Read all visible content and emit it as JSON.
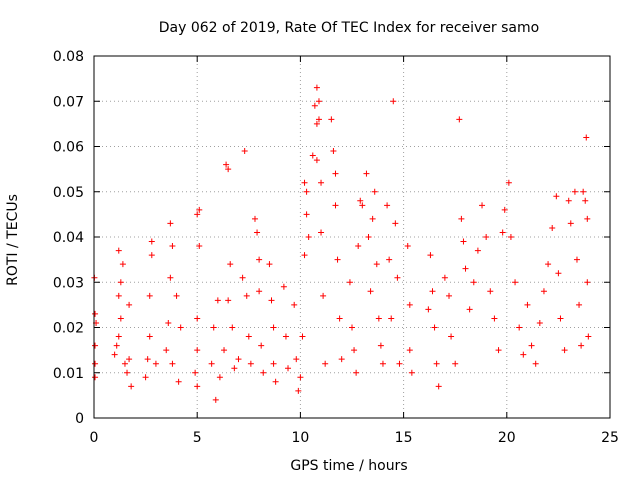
{
  "chart_data": {
    "type": "scatter",
    "title": "Day 062 of 2019, Rate Of TEC Index for receiver samo",
    "xlabel": "GPS time / hours",
    "ylabel": "ROTI / TECUs",
    "xlim": [
      0,
      25
    ],
    "ylim": [
      0,
      0.08
    ],
    "xticks": [
      0,
      5,
      10,
      15,
      20,
      25
    ],
    "xtick_labels": [
      "0",
      "5",
      "10",
      "15",
      "20",
      "25"
    ],
    "yticks": [
      0,
      0.01,
      0.02,
      0.03,
      0.04,
      0.05,
      0.06,
      0.07,
      0.08
    ],
    "ytick_labels": [
      "0",
      "0.01",
      "0.02",
      "0.03",
      "0.04",
      "0.05",
      "0.06",
      "0.07",
      "0.08"
    ],
    "grid": true,
    "marker": "+",
    "marker_color": "#ff0000",
    "series": [
      {
        "name": "ROTI",
        "points": [
          [
            0.02,
            0.031
          ],
          [
            0.05,
            0.023
          ],
          [
            0.1,
            0.021
          ],
          [
            0.05,
            0.016
          ],
          [
            0.05,
            0.012
          ],
          [
            0.05,
            0.009
          ],
          [
            1.0,
            0.014
          ],
          [
            1.1,
            0.016
          ],
          [
            1.2,
            0.018
          ],
          [
            1.3,
            0.022
          ],
          [
            1.2,
            0.027
          ],
          [
            1.3,
            0.03
          ],
          [
            1.4,
            0.034
          ],
          [
            1.2,
            0.037
          ],
          [
            1.5,
            0.012
          ],
          [
            1.6,
            0.01
          ],
          [
            1.7,
            0.025
          ],
          [
            1.7,
            0.013
          ],
          [
            1.8,
            0.007
          ],
          [
            2.5,
            0.009
          ],
          [
            2.6,
            0.013
          ],
          [
            2.7,
            0.018
          ],
          [
            2.7,
            0.027
          ],
          [
            2.8,
            0.036
          ],
          [
            2.8,
            0.039
          ],
          [
            3.0,
            0.012
          ],
          [
            3.5,
            0.015
          ],
          [
            3.6,
            0.021
          ],
          [
            3.7,
            0.031
          ],
          [
            3.7,
            0.043
          ],
          [
            3.8,
            0.038
          ],
          [
            4.0,
            0.027
          ],
          [
            3.8,
            0.012
          ],
          [
            4.1,
            0.008
          ],
          [
            4.2,
            0.02
          ],
          [
            4.9,
            0.01
          ],
          [
            5.0,
            0.015
          ],
          [
            5.0,
            0.022
          ],
          [
            5.1,
            0.038
          ],
          [
            5.0,
            0.045
          ],
          [
            5.1,
            0.046
          ],
          [
            5.0,
            0.007
          ],
          [
            5.7,
            0.012
          ],
          [
            5.8,
            0.02
          ],
          [
            5.9,
            0.004
          ],
          [
            6.0,
            0.026
          ],
          [
            6.1,
            0.009
          ],
          [
            6.3,
            0.015
          ],
          [
            6.4,
            0.056
          ],
          [
            6.5,
            0.055
          ],
          [
            6.6,
            0.034
          ],
          [
            6.5,
            0.026
          ],
          [
            6.7,
            0.02
          ],
          [
            6.8,
            0.011
          ],
          [
            7.0,
            0.013
          ],
          [
            7.2,
            0.031
          ],
          [
            7.3,
            0.059
          ],
          [
            7.4,
            0.027
          ],
          [
            7.5,
            0.018
          ],
          [
            7.6,
            0.012
          ],
          [
            7.8,
            0.044
          ],
          [
            7.9,
            0.041
          ],
          [
            8.0,
            0.035
          ],
          [
            8.0,
            0.028
          ],
          [
            8.1,
            0.016
          ],
          [
            8.2,
            0.01
          ],
          [
            8.5,
            0.034
          ],
          [
            8.6,
            0.026
          ],
          [
            8.7,
            0.02
          ],
          [
            8.7,
            0.012
          ],
          [
            8.8,
            0.008
          ],
          [
            9.2,
            0.029
          ],
          [
            9.3,
            0.018
          ],
          [
            9.4,
            0.011
          ],
          [
            9.7,
            0.025
          ],
          [
            9.8,
            0.013
          ],
          [
            9.9,
            0.006
          ],
          [
            10.0,
            0.009
          ],
          [
            10.1,
            0.018
          ],
          [
            10.2,
            0.036
          ],
          [
            10.2,
            0.052
          ],
          [
            10.3,
            0.05
          ],
          [
            10.3,
            0.045
          ],
          [
            10.4,
            0.04
          ],
          [
            10.6,
            0.058
          ],
          [
            10.7,
            0.069
          ],
          [
            10.8,
            0.073
          ],
          [
            10.8,
            0.065
          ],
          [
            10.9,
            0.066
          ],
          [
            10.9,
            0.07
          ],
          [
            10.8,
            0.057
          ],
          [
            11.0,
            0.052
          ],
          [
            11.0,
            0.041
          ],
          [
            11.1,
            0.027
          ],
          [
            11.2,
            0.012
          ],
          [
            11.5,
            0.066
          ],
          [
            11.6,
            0.059
          ],
          [
            11.7,
            0.054
          ],
          [
            11.7,
            0.047
          ],
          [
            11.8,
            0.035
          ],
          [
            11.9,
            0.022
          ],
          [
            12.0,
            0.013
          ],
          [
            12.4,
            0.03
          ],
          [
            12.5,
            0.02
          ],
          [
            12.6,
            0.015
          ],
          [
            12.7,
            0.01
          ],
          [
            12.8,
            0.038
          ],
          [
            12.9,
            0.048
          ],
          [
            13.0,
            0.047
          ],
          [
            13.2,
            0.054
          ],
          [
            13.3,
            0.04
          ],
          [
            13.4,
            0.028
          ],
          [
            13.5,
            0.044
          ],
          [
            13.6,
            0.05
          ],
          [
            13.7,
            0.034
          ],
          [
            13.8,
            0.022
          ],
          [
            13.9,
            0.016
          ],
          [
            14.0,
            0.012
          ],
          [
            14.2,
            0.047
          ],
          [
            14.3,
            0.035
          ],
          [
            14.4,
            0.022
          ],
          [
            14.5,
            0.07
          ],
          [
            14.6,
            0.043
          ],
          [
            14.7,
            0.031
          ],
          [
            14.8,
            0.012
          ],
          [
            15.2,
            0.038
          ],
          [
            15.3,
            0.025
          ],
          [
            15.3,
            0.015
          ],
          [
            15.4,
            0.01
          ],
          [
            16.2,
            0.024
          ],
          [
            16.3,
            0.036
          ],
          [
            16.4,
            0.028
          ],
          [
            16.5,
            0.02
          ],
          [
            16.6,
            0.012
          ],
          [
            16.7,
            0.007
          ],
          [
            17.0,
            0.031
          ],
          [
            17.2,
            0.027
          ],
          [
            17.3,
            0.018
          ],
          [
            17.5,
            0.012
          ],
          [
            17.7,
            0.066
          ],
          [
            17.8,
            0.044
          ],
          [
            17.9,
            0.039
          ],
          [
            18.0,
            0.033
          ],
          [
            18.2,
            0.024
          ],
          [
            18.4,
            0.03
          ],
          [
            18.6,
            0.037
          ],
          [
            18.8,
            0.047
          ],
          [
            19.0,
            0.04
          ],
          [
            19.2,
            0.028
          ],
          [
            19.4,
            0.022
          ],
          [
            19.6,
            0.015
          ],
          [
            19.8,
            0.041
          ],
          [
            19.9,
            0.046
          ],
          [
            20.1,
            0.052
          ],
          [
            20.2,
            0.04
          ],
          [
            20.4,
            0.03
          ],
          [
            20.6,
            0.02
          ],
          [
            20.8,
            0.014
          ],
          [
            21.0,
            0.025
          ],
          [
            21.2,
            0.016
          ],
          [
            21.4,
            0.012
          ],
          [
            21.6,
            0.021
          ],
          [
            21.8,
            0.028
          ],
          [
            22.0,
            0.034
          ],
          [
            22.2,
            0.042
          ],
          [
            22.4,
            0.049
          ],
          [
            22.5,
            0.032
          ],
          [
            22.6,
            0.022
          ],
          [
            22.8,
            0.015
          ],
          [
            23.0,
            0.048
          ],
          [
            23.1,
            0.043
          ],
          [
            23.3,
            0.05
          ],
          [
            23.4,
            0.035
          ],
          [
            23.5,
            0.025
          ],
          [
            23.6,
            0.016
          ],
          [
            23.7,
            0.05
          ],
          [
            23.8,
            0.048
          ],
          [
            23.85,
            0.062
          ],
          [
            23.9,
            0.044
          ],
          [
            23.9,
            0.03
          ],
          [
            23.95,
            0.018
          ]
        ]
      }
    ]
  }
}
